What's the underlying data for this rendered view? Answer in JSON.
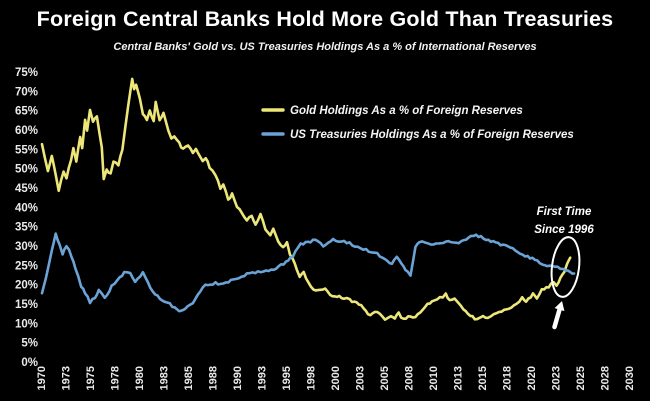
{
  "header": {
    "title": "Foreign Central Banks Hold More Gold Than Treasuries",
    "subtitle": "Central Banks' Gold vs. US Treasuries Holdings As a % of International Reserves"
  },
  "annotation": {
    "line1": "First Time",
    "line2": "Since 1996"
  },
  "colors": {
    "background": "#000000",
    "gold_line": "#EDE77A",
    "treasuries_line": "#6BA3D6",
    "text": "#FFFFFF",
    "axis_text": "#EAEAEA",
    "annotation": "#FFFFFF"
  },
  "chart_data": {
    "type": "line",
    "title": "Foreign Central Banks Hold More Gold Than Treasuries",
    "subtitle": "Central Banks' Gold vs. US Treasuries Holdings As a % of International Reserves",
    "xlabel": "",
    "ylabel": "",
    "grid": false,
    "legend_position": "upper center",
    "xlim": [
      1970,
      2030
    ],
    "ylim": [
      0,
      75
    ],
    "y_tick_labels": [
      "75%",
      "70%",
      "65%",
      "60%",
      "55%",
      "50%",
      "45%",
      "40%",
      "35%",
      "30%",
      "25%",
      "20%",
      "15%",
      "10%",
      "5%",
      "0%"
    ],
    "x_tick_labels": [
      "1970",
      "1973",
      "1975",
      "1978",
      "1980",
      "1983",
      "1985",
      "1988",
      "1990",
      "1993",
      "1995",
      "1998",
      "2000",
      "2003",
      "2005",
      "2008",
      "2010",
      "2013",
      "2015",
      "2018",
      "2020",
      "2023",
      "2025",
      "2028",
      "2030"
    ],
    "series": [
      {
        "name": "Gold Holdings As a % of Foreign Reserves",
        "color": "#EDE77A",
        "points": [
          [
            1970,
            56.5
          ],
          [
            1970.6,
            49.5
          ],
          [
            1971,
            53
          ],
          [
            1971.4,
            48.5
          ],
          [
            1971.7,
            44.5
          ],
          [
            1972.2,
            49.5
          ],
          [
            1972.5,
            47.5
          ],
          [
            1973.2,
            55
          ],
          [
            1973.5,
            52
          ],
          [
            1973.9,
            58.5
          ],
          [
            1974.1,
            55.5
          ],
          [
            1974.4,
            62.5
          ],
          [
            1974.6,
            60
          ],
          [
            1974.9,
            65
          ],
          [
            1975.2,
            62
          ],
          [
            1975.6,
            63.5
          ],
          [
            1976.1,
            55.5
          ],
          [
            1976.3,
            47
          ],
          [
            1976.6,
            49.5
          ],
          [
            1977,
            48.5
          ],
          [
            1977.3,
            52
          ],
          [
            1977.8,
            51
          ],
          [
            1978.2,
            55
          ],
          [
            1978.5,
            61
          ],
          [
            1978.8,
            66.5
          ],
          [
            1979.2,
            73.5
          ],
          [
            1979.4,
            70.5
          ],
          [
            1979.6,
            72
          ],
          [
            1980,
            68
          ],
          [
            1980.3,
            64
          ],
          [
            1980.7,
            62.5
          ],
          [
            1981,
            65
          ],
          [
            1981.4,
            62
          ],
          [
            1981.6,
            67
          ],
          [
            1982,
            62.5
          ],
          [
            1982.4,
            64.5
          ],
          [
            1982.9,
            60
          ],
          [
            1983.2,
            58
          ],
          [
            1983.5,
            58.5
          ],
          [
            1984,
            56.5
          ],
          [
            1984.4,
            55
          ],
          [
            1984.9,
            56
          ],
          [
            1985.4,
            54
          ],
          [
            1985.7,
            55
          ],
          [
            1986.4,
            52
          ],
          [
            1986.7,
            53
          ],
          [
            1987.1,
            50.5
          ],
          [
            1987.7,
            48.5
          ],
          [
            1988.2,
            45
          ],
          [
            1988.5,
            46
          ],
          [
            1989,
            42
          ],
          [
            1989.4,
            43.5
          ],
          [
            1989.9,
            40
          ],
          [
            1990.4,
            38.5
          ],
          [
            1990.9,
            36.5
          ],
          [
            1991.4,
            38
          ],
          [
            1991.8,
            35.5
          ],
          [
            1992.3,
            38.5
          ],
          [
            1992.8,
            34.5
          ],
          [
            1993.3,
            33
          ],
          [
            1993.6,
            34.5
          ],
          [
            1994.1,
            31
          ],
          [
            1994.6,
            29.5
          ],
          [
            1995,
            31
          ],
          [
            1995.3,
            28
          ],
          [
            1995.6,
            26.5
          ],
          [
            1996,
            24
          ],
          [
            1996.3,
            22
          ],
          [
            1996.7,
            23
          ],
          [
            1997.2,
            20.5
          ],
          [
            1997.7,
            19
          ],
          [
            1998.4,
            18.5
          ],
          [
            1998.9,
            19
          ],
          [
            1999.4,
            17.5
          ],
          [
            2000.1,
            17
          ],
          [
            2000.8,
            16.5
          ],
          [
            2001.4,
            16
          ],
          [
            2002.1,
            15.5
          ],
          [
            2002.8,
            14
          ],
          [
            2003.5,
            12
          ],
          [
            2004.2,
            13
          ],
          [
            2005,
            11
          ],
          [
            2005.6,
            12
          ],
          [
            2006,
            11.5
          ],
          [
            2006.4,
            12.5
          ],
          [
            2006.9,
            11
          ],
          [
            2007.6,
            12
          ],
          [
            2008.1,
            11.5
          ],
          [
            2009.1,
            14.5
          ],
          [
            2009.8,
            15.5
          ],
          [
            2010.6,
            16.5
          ],
          [
            2011.2,
            17.5
          ],
          [
            2011.6,
            16
          ],
          [
            2012.1,
            16.5
          ],
          [
            2013,
            13.5
          ],
          [
            2013.7,
            12
          ],
          [
            2014.4,
            11
          ],
          [
            2015,
            12
          ],
          [
            2015.5,
            11.5
          ],
          [
            2016.4,
            12.5
          ],
          [
            2017.4,
            13.5
          ],
          [
            2018.4,
            15
          ],
          [
            2019,
            16.5
          ],
          [
            2019.4,
            15.5
          ],
          [
            2020.1,
            17.5
          ],
          [
            2020.5,
            16.5
          ],
          [
            2021,
            18.5
          ],
          [
            2021.7,
            19.5
          ],
          [
            2022.2,
            20.5
          ],
          [
            2022.5,
            19.5
          ],
          [
            2022.9,
            22
          ],
          [
            2023.3,
            23.5
          ],
          [
            2023.6,
            25.5
          ],
          [
            2023.9,
            27
          ]
        ]
      },
      {
        "name": "US Treasuries Holdings As a % of Foreign Reserves",
        "color": "#6BA3D6",
        "points": [
          [
            1970,
            18
          ],
          [
            1970.4,
            22
          ],
          [
            1971,
            29
          ],
          [
            1971.4,
            33
          ],
          [
            1971.8,
            30.5
          ],
          [
            1972.1,
            28
          ],
          [
            1972.5,
            30
          ],
          [
            1973,
            27.5
          ],
          [
            1973.4,
            24.5
          ],
          [
            1974,
            19.5
          ],
          [
            1974.4,
            18
          ],
          [
            1974.9,
            15.5
          ],
          [
            1975.4,
            16.5
          ],
          [
            1975.8,
            18.5
          ],
          [
            1976.4,
            16.5
          ],
          [
            1977.1,
            19.5
          ],
          [
            1977.7,
            21.5
          ],
          [
            1978.4,
            23
          ],
          [
            1979,
            23
          ],
          [
            1979.5,
            21
          ],
          [
            1980.3,
            23
          ],
          [
            1980.8,
            21
          ],
          [
            1981.3,
            18
          ],
          [
            1982.3,
            16
          ],
          [
            1983.3,
            14.5
          ],
          [
            1984,
            13
          ],
          [
            1984.6,
            14
          ],
          [
            1985.4,
            15.5
          ],
          [
            1986.4,
            19.5
          ],
          [
            1987.7,
            20.5
          ],
          [
            1988.5,
            20
          ],
          [
            1989.8,
            21.5
          ],
          [
            1991.2,
            23
          ],
          [
            1992.6,
            23.5
          ],
          [
            1993.9,
            24
          ],
          [
            1994.9,
            26
          ],
          [
            1995.6,
            27.5
          ],
          [
            1996.4,
            30.5
          ],
          [
            1997.9,
            31.5
          ],
          [
            1998.7,
            30
          ],
          [
            1999.7,
            31.5
          ],
          [
            2001.1,
            31
          ],
          [
            2002.5,
            29.5
          ],
          [
            2004.2,
            28
          ],
          [
            2005,
            26.5
          ],
          [
            2005.7,
            25.5
          ],
          [
            2006.2,
            27.5
          ],
          [
            2006.9,
            24.5
          ],
          [
            2007.3,
            23.5
          ],
          [
            2007.6,
            22.5
          ],
          [
            2008.1,
            29.5
          ],
          [
            2008.5,
            31
          ],
          [
            2008.8,
            31.5
          ],
          [
            2009.7,
            30.5
          ],
          [
            2010.7,
            31
          ],
          [
            2011.7,
            31
          ],
          [
            2012.8,
            31
          ],
          [
            2014.3,
            33
          ],
          [
            2015.3,
            31.5
          ],
          [
            2016.3,
            31
          ],
          [
            2017.3,
            30
          ],
          [
            2018.3,
            29
          ],
          [
            2019.3,
            27.5
          ],
          [
            2020.3,
            26.5
          ],
          [
            2021.3,
            25
          ],
          [
            2022.3,
            24.5
          ],
          [
            2023.2,
            24
          ],
          [
            2023.9,
            23.2
          ],
          [
            2024.3,
            22.6
          ]
        ]
      }
    ],
    "annotations": [
      {
        "text": [
          "First Time",
          "Since 1996"
        ],
        "target": "crossover of gold above treasuries",
        "x": 2024,
        "y": 24.5
      }
    ]
  }
}
